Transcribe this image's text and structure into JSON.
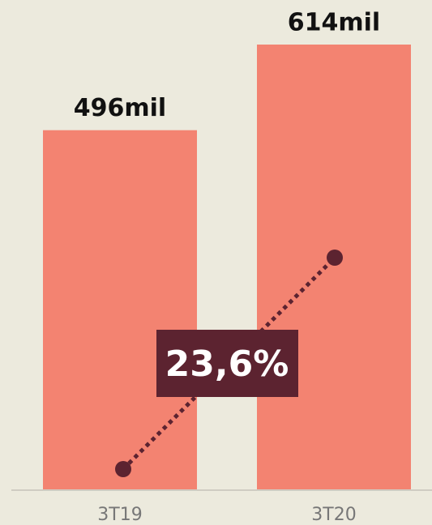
{
  "chart_data": {
    "type": "bar",
    "categories": [
      "3T19",
      "3T20"
    ],
    "values": [
      496,
      614
    ],
    "value_labels": [
      "496mil",
      "614mil"
    ],
    "color": "#f38371",
    "annotation": "23,6%"
  }
}
